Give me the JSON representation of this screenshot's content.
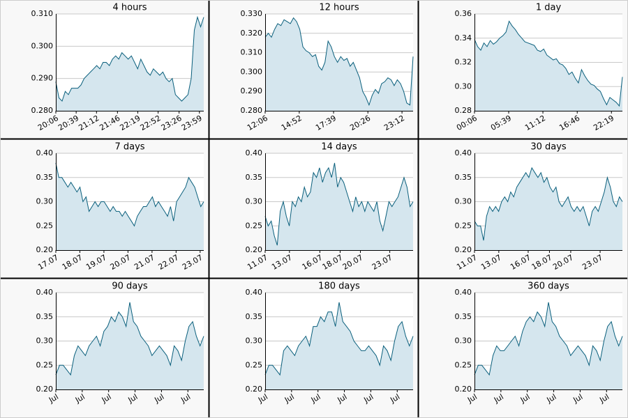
{
  "chart_data": [
    {
      "type": "line",
      "title": "4 hours",
      "area": true,
      "grid": true,
      "color": "#0a5f7c",
      "fill": "#d5e6ee",
      "ylim": [
        0.28,
        0.31
      ],
      "yticks": [
        {
          "value": 0.28,
          "label": "0.280"
        },
        {
          "value": 0.29,
          "label": "0.290"
        },
        {
          "value": 0.3,
          "label": "0.300"
        },
        {
          "value": 0.31,
          "label": "0.310"
        }
      ],
      "xlim": [
        0,
        240
      ],
      "xticks": [
        {
          "value": 0,
          "label": "20:06"
        },
        {
          "value": 33,
          "label": "20:39"
        },
        {
          "value": 66,
          "label": "21:12"
        },
        {
          "value": 100,
          "label": "21:46"
        },
        {
          "value": 133,
          "label": "22:19"
        },
        {
          "value": 166,
          "label": "22:52"
        },
        {
          "value": 200,
          "label": "23:26"
        },
        {
          "value": 233,
          "label": "23:59"
        }
      ],
      "values": [
        0.289,
        0.284,
        0.283,
        0.286,
        0.285,
        0.287,
        0.287,
        0.287,
        0.288,
        0.29,
        0.291,
        0.292,
        0.293,
        0.294,
        0.293,
        0.295,
        0.295,
        0.294,
        0.296,
        0.297,
        0.296,
        0.298,
        0.297,
        0.296,
        0.297,
        0.295,
        0.293,
        0.296,
        0.294,
        0.292,
        0.291,
        0.293,
        0.292,
        0.291,
        0.292,
        0.29,
        0.289,
        0.29,
        0.285,
        0.284,
        0.283,
        0.284,
        0.285,
        0.29,
        0.305,
        0.309,
        0.306,
        0.309
      ]
    },
    {
      "type": "line",
      "title": "12 hours",
      "area": true,
      "grid": true,
      "color": "#0a5f7c",
      "fill": "#d5e6ee",
      "ylim": [
        0.28,
        0.33
      ],
      "yticks": [
        {
          "value": 0.28,
          "label": "0.280"
        },
        {
          "value": 0.29,
          "label": "0.290"
        },
        {
          "value": 0.3,
          "label": "0.300"
        },
        {
          "value": 0.31,
          "label": "0.310"
        },
        {
          "value": 0.32,
          "label": "0.320"
        },
        {
          "value": 0.33,
          "label": "0.330"
        }
      ],
      "xlim": [
        0,
        720
      ],
      "xticks": [
        {
          "value": 0,
          "label": "12:06"
        },
        {
          "value": 166,
          "label": "14:52"
        },
        {
          "value": 333,
          "label": "17:39"
        },
        {
          "value": 500,
          "label": "20:26"
        },
        {
          "value": 666,
          "label": "23:12"
        }
      ],
      "values": [
        0.318,
        0.32,
        0.318,
        0.322,
        0.325,
        0.324,
        0.327,
        0.326,
        0.325,
        0.328,
        0.326,
        0.322,
        0.313,
        0.311,
        0.31,
        0.308,
        0.309,
        0.303,
        0.301,
        0.305,
        0.316,
        0.313,
        0.308,
        0.305,
        0.308,
        0.306,
        0.307,
        0.303,
        0.305,
        0.301,
        0.297,
        0.29,
        0.287,
        0.283,
        0.288,
        0.291,
        0.289,
        0.294,
        0.295,
        0.297,
        0.296,
        0.293,
        0.296,
        0.294,
        0.29,
        0.284,
        0.283,
        0.308
      ]
    },
    {
      "type": "line",
      "title": "1 day",
      "area": true,
      "grid": true,
      "color": "#0a5f7c",
      "fill": "#d5e6ee",
      "ylim": [
        0.28,
        0.36
      ],
      "yticks": [
        {
          "value": 0.28,
          "label": "0.28"
        },
        {
          "value": 0.3,
          "label": "0.30"
        },
        {
          "value": 0.32,
          "label": "0.32"
        },
        {
          "value": 0.34,
          "label": "0.34"
        },
        {
          "value": 0.36,
          "label": "0.36"
        }
      ],
      "xlim": [
        0,
        1440
      ],
      "xticks": [
        {
          "value": 0,
          "label": "00:06"
        },
        {
          "value": 333,
          "label": "05:39"
        },
        {
          "value": 666,
          "label": "11:12"
        },
        {
          "value": 1000,
          "label": "16:46"
        },
        {
          "value": 1333,
          "label": "22:19"
        }
      ],
      "values": [
        0.339,
        0.333,
        0.33,
        0.336,
        0.333,
        0.338,
        0.335,
        0.337,
        0.34,
        0.342,
        0.345,
        0.354,
        0.35,
        0.347,
        0.343,
        0.34,
        0.337,
        0.336,
        0.335,
        0.334,
        0.33,
        0.329,
        0.331,
        0.326,
        0.324,
        0.322,
        0.323,
        0.319,
        0.318,
        0.315,
        0.31,
        0.312,
        0.307,
        0.303,
        0.314,
        0.309,
        0.305,
        0.302,
        0.301,
        0.298,
        0.296,
        0.29,
        0.285,
        0.291,
        0.289,
        0.287,
        0.284,
        0.308
      ]
    },
    {
      "type": "line",
      "title": "7 days",
      "area": true,
      "grid": true,
      "color": "#0a5f7c",
      "fill": "#d5e6ee",
      "ylim": [
        0.2,
        0.4
      ],
      "yticks": [
        {
          "value": 0.2,
          "label": "0.20"
        },
        {
          "value": 0.25,
          "label": "0.25"
        },
        {
          "value": 0.3,
          "label": "0.30"
        },
        {
          "value": 0.35,
          "label": "0.35"
        },
        {
          "value": 0.4,
          "label": "0.40"
        }
      ],
      "xlim": [
        0,
        6.15
      ],
      "xticks": [
        {
          "value": 0,
          "label": "17.07"
        },
        {
          "value": 1,
          "label": "18.07"
        },
        {
          "value": 2,
          "label": "19.07"
        },
        {
          "value": 3,
          "label": "20.07"
        },
        {
          "value": 4,
          "label": "21.07"
        },
        {
          "value": 5,
          "label": "22.07"
        },
        {
          "value": 6,
          "label": "23.07"
        }
      ],
      "values": [
        0.38,
        0.35,
        0.35,
        0.34,
        0.33,
        0.34,
        0.33,
        0.32,
        0.33,
        0.3,
        0.31,
        0.28,
        0.29,
        0.3,
        0.29,
        0.3,
        0.3,
        0.29,
        0.28,
        0.29,
        0.28,
        0.28,
        0.27,
        0.28,
        0.27,
        0.26,
        0.25,
        0.27,
        0.28,
        0.29,
        0.29,
        0.3,
        0.31,
        0.29,
        0.3,
        0.29,
        0.28,
        0.27,
        0.29,
        0.26,
        0.3,
        0.31,
        0.32,
        0.33,
        0.35,
        0.34,
        0.33,
        0.31,
        0.29,
        0.3
      ]
    },
    {
      "type": "line",
      "title": "14 days",
      "area": true,
      "grid": true,
      "color": "#0a5f7c",
      "fill": "#d5e6ee",
      "ylim": [
        0.2,
        0.4
      ],
      "yticks": [
        {
          "value": 0.2,
          "label": "0.20"
        },
        {
          "value": 0.25,
          "label": "0.25"
        },
        {
          "value": 0.3,
          "label": "0.30"
        },
        {
          "value": 0.35,
          "label": "0.35"
        },
        {
          "value": 0.4,
          "label": "0.40"
        }
      ],
      "xlim": [
        0,
        14.6
      ],
      "xticks": [
        {
          "value": 0,
          "label": "11.07"
        },
        {
          "value": 2.4,
          "label": "13.07"
        },
        {
          "value": 5.4,
          "label": "16.07"
        },
        {
          "value": 7.4,
          "label": "18.07"
        },
        {
          "value": 9.4,
          "label": "20.07"
        },
        {
          "value": 12.3,
          "label": "23.07"
        }
      ],
      "values": [
        0.27,
        0.25,
        0.26,
        0.23,
        0.21,
        0.28,
        0.3,
        0.27,
        0.25,
        0.3,
        0.29,
        0.31,
        0.3,
        0.33,
        0.31,
        0.32,
        0.36,
        0.35,
        0.37,
        0.34,
        0.36,
        0.37,
        0.35,
        0.38,
        0.33,
        0.35,
        0.34,
        0.32,
        0.3,
        0.28,
        0.31,
        0.29,
        0.3,
        0.28,
        0.3,
        0.29,
        0.28,
        0.3,
        0.26,
        0.24,
        0.27,
        0.3,
        0.29,
        0.3,
        0.31,
        0.33,
        0.35,
        0.33,
        0.29,
        0.3
      ]
    },
    {
      "type": "line",
      "title": "30 days",
      "area": true,
      "grid": true,
      "color": "#0a5f7c",
      "fill": "#d5e6ee",
      "ylim": [
        0.2,
        0.4
      ],
      "yticks": [
        {
          "value": 0.2,
          "label": "0.20"
        },
        {
          "value": 0.25,
          "label": "0.25"
        },
        {
          "value": 0.3,
          "label": "0.30"
        },
        {
          "value": 0.35,
          "label": "0.35"
        },
        {
          "value": 0.4,
          "label": "0.40"
        }
      ],
      "xlim": [
        0,
        14.6
      ],
      "xticks": [
        {
          "value": 0,
          "label": "11.07"
        },
        {
          "value": 2.4,
          "label": "13.07"
        },
        {
          "value": 5.3,
          "label": "16.07"
        },
        {
          "value": 7.4,
          "label": "18.07"
        },
        {
          "value": 9.5,
          "label": "20.07"
        },
        {
          "value": 12.4,
          "label": "23.07"
        }
      ],
      "values": [
        0.26,
        0.25,
        0.25,
        0.22,
        0.27,
        0.29,
        0.28,
        0.29,
        0.28,
        0.3,
        0.31,
        0.3,
        0.32,
        0.31,
        0.33,
        0.34,
        0.35,
        0.36,
        0.35,
        0.37,
        0.36,
        0.35,
        0.36,
        0.34,
        0.35,
        0.33,
        0.32,
        0.33,
        0.3,
        0.29,
        0.3,
        0.31,
        0.29,
        0.28,
        0.29,
        0.28,
        0.29,
        0.27,
        0.25,
        0.28,
        0.29,
        0.28,
        0.3,
        0.32,
        0.35,
        0.33,
        0.3,
        0.29,
        0.31,
        0.3
      ]
    },
    {
      "type": "line",
      "title": "90 days",
      "area": true,
      "grid": true,
      "color": "#0a5f7c",
      "fill": "#d5e6ee",
      "ylim": [
        0.2,
        0.4
      ],
      "yticks": [
        {
          "value": 0.2,
          "label": "0.20"
        },
        {
          "value": 0.25,
          "label": "0.25"
        },
        {
          "value": 0.3,
          "label": "0.30"
        },
        {
          "value": 0.35,
          "label": "0.35"
        },
        {
          "value": 0.4,
          "label": "0.40"
        }
      ],
      "xlim": [
        0,
        5.6
      ],
      "xticks": [
        {
          "value": 0,
          "label": "Jul"
        },
        {
          "value": 1,
          "label": "Jul"
        },
        {
          "value": 2,
          "label": "Jul"
        },
        {
          "value": 3,
          "label": "Jul"
        },
        {
          "value": 4,
          "label": "Jul"
        },
        {
          "value": 5,
          "label": "Jul"
        }
      ],
      "values": [
        0.23,
        0.25,
        0.25,
        0.24,
        0.23,
        0.27,
        0.29,
        0.28,
        0.27,
        0.29,
        0.3,
        0.31,
        0.29,
        0.32,
        0.33,
        0.35,
        0.34,
        0.36,
        0.35,
        0.33,
        0.38,
        0.34,
        0.33,
        0.31,
        0.3,
        0.29,
        0.27,
        0.28,
        0.29,
        0.28,
        0.27,
        0.25,
        0.29,
        0.28,
        0.26,
        0.3,
        0.33,
        0.34,
        0.31,
        0.29,
        0.31
      ]
    },
    {
      "type": "line",
      "title": "180 days",
      "area": true,
      "grid": true,
      "color": "#0a5f7c",
      "fill": "#d5e6ee",
      "ylim": [
        0.2,
        0.4
      ],
      "yticks": [
        {
          "value": 0.2,
          "label": "0.20"
        },
        {
          "value": 0.25,
          "label": "0.25"
        },
        {
          "value": 0.3,
          "label": "0.30"
        },
        {
          "value": 0.35,
          "label": "0.35"
        },
        {
          "value": 0.4,
          "label": "0.40"
        }
      ],
      "xlim": [
        0,
        5.6
      ],
      "xticks": [
        {
          "value": 0,
          "label": "Jul"
        },
        {
          "value": 1,
          "label": "Jul"
        },
        {
          "value": 2,
          "label": "Jul"
        },
        {
          "value": 3,
          "label": "Jul"
        },
        {
          "value": 4,
          "label": "Jul"
        },
        {
          "value": 5,
          "label": "Jul"
        }
      ],
      "values": [
        0.23,
        0.25,
        0.25,
        0.24,
        0.23,
        0.28,
        0.29,
        0.28,
        0.27,
        0.29,
        0.3,
        0.31,
        0.29,
        0.33,
        0.33,
        0.35,
        0.34,
        0.36,
        0.36,
        0.33,
        0.38,
        0.34,
        0.33,
        0.32,
        0.3,
        0.29,
        0.28,
        0.28,
        0.29,
        0.28,
        0.27,
        0.25,
        0.29,
        0.28,
        0.26,
        0.3,
        0.33,
        0.34,
        0.31,
        0.29,
        0.31
      ]
    },
    {
      "type": "line",
      "title": "360 days",
      "area": true,
      "grid": true,
      "color": "#0a5f7c",
      "fill": "#d5e6ee",
      "ylim": [
        0.2,
        0.4
      ],
      "yticks": [
        {
          "value": 0.2,
          "label": "0.20"
        },
        {
          "value": 0.25,
          "label": "0.25"
        },
        {
          "value": 0.3,
          "label": "0.30"
        },
        {
          "value": 0.35,
          "label": "0.35"
        },
        {
          "value": 0.4,
          "label": "0.40"
        }
      ],
      "xlim": [
        0,
        5.6
      ],
      "xticks": [
        {
          "value": 0,
          "label": "Jul"
        },
        {
          "value": 1,
          "label": "Jul"
        },
        {
          "value": 2,
          "label": "Jul"
        },
        {
          "value": 3,
          "label": "Jul"
        },
        {
          "value": 4,
          "label": "Jul"
        },
        {
          "value": 5,
          "label": "Jul"
        }
      ],
      "values": [
        0.23,
        0.25,
        0.25,
        0.24,
        0.23,
        0.27,
        0.29,
        0.28,
        0.28,
        0.29,
        0.3,
        0.31,
        0.29,
        0.32,
        0.34,
        0.35,
        0.34,
        0.36,
        0.35,
        0.33,
        0.38,
        0.34,
        0.33,
        0.31,
        0.3,
        0.29,
        0.27,
        0.28,
        0.29,
        0.28,
        0.27,
        0.25,
        0.29,
        0.28,
        0.26,
        0.3,
        0.33,
        0.34,
        0.31,
        0.29,
        0.31
      ]
    }
  ]
}
